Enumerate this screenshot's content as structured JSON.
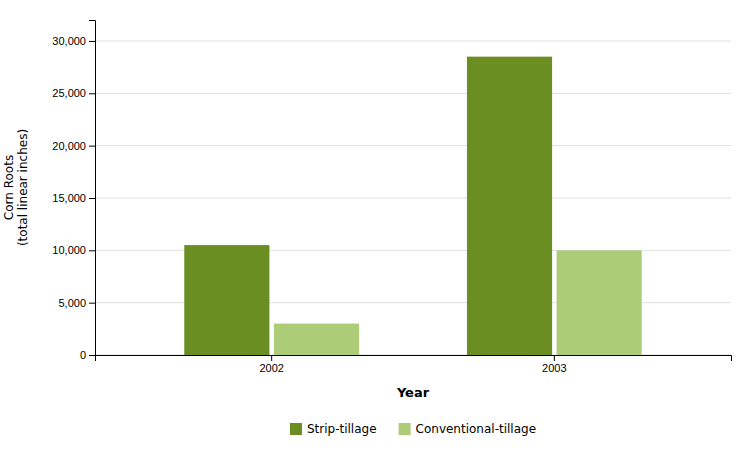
{
  "chart_data": {
    "type": "bar",
    "xlabel": "Year",
    "ylabel": "Corn Roots\n(total linear inches)",
    "categories": [
      "2002",
      "2003"
    ],
    "series": [
      {
        "name": "Strip-tillage",
        "color": "#6B8E23",
        "values": [
          10500,
          28500
        ]
      },
      {
        "name": "Conventional-tillage",
        "color": "#ADCC78",
        "values": [
          3000,
          10000
        ]
      }
    ],
    "ylim": [
      0,
      32000
    ],
    "yticks": [
      0,
      {
        "value": 5000,
        "label": "5,000"
      },
      {
        "value": 10000,
        "label": "10,000"
      },
      {
        "value": 15000,
        "label": "15,000"
      },
      {
        "value": 20000,
        "label": "20,000"
      },
      {
        "value": 25000,
        "label": "25,000"
      },
      {
        "value": 30000,
        "label": "30,000"
      }
    ],
    "grid": true,
    "legend": "bottom"
  }
}
